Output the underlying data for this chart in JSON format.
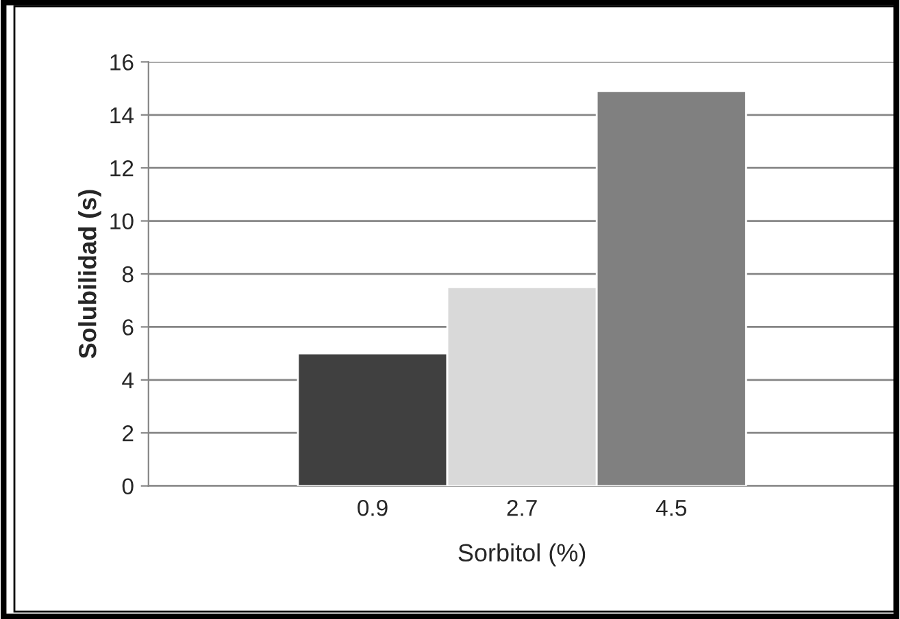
{
  "chart_data": {
    "type": "bar",
    "xlabel": "Sorbitol (%)",
    "ylabel": "Solubilidad (s)",
    "categories": [
      "0.9",
      "2.7",
      "4.5"
    ],
    "values": [
      5,
      7.5,
      14.9
    ],
    "colors": [
      "#404040",
      "#d9d9d9",
      "#808080"
    ],
    "ylim": [
      0,
      16
    ],
    "yticks": [
      0,
      2,
      4,
      6,
      8,
      10,
      12,
      14,
      16
    ],
    "grid": "y"
  }
}
